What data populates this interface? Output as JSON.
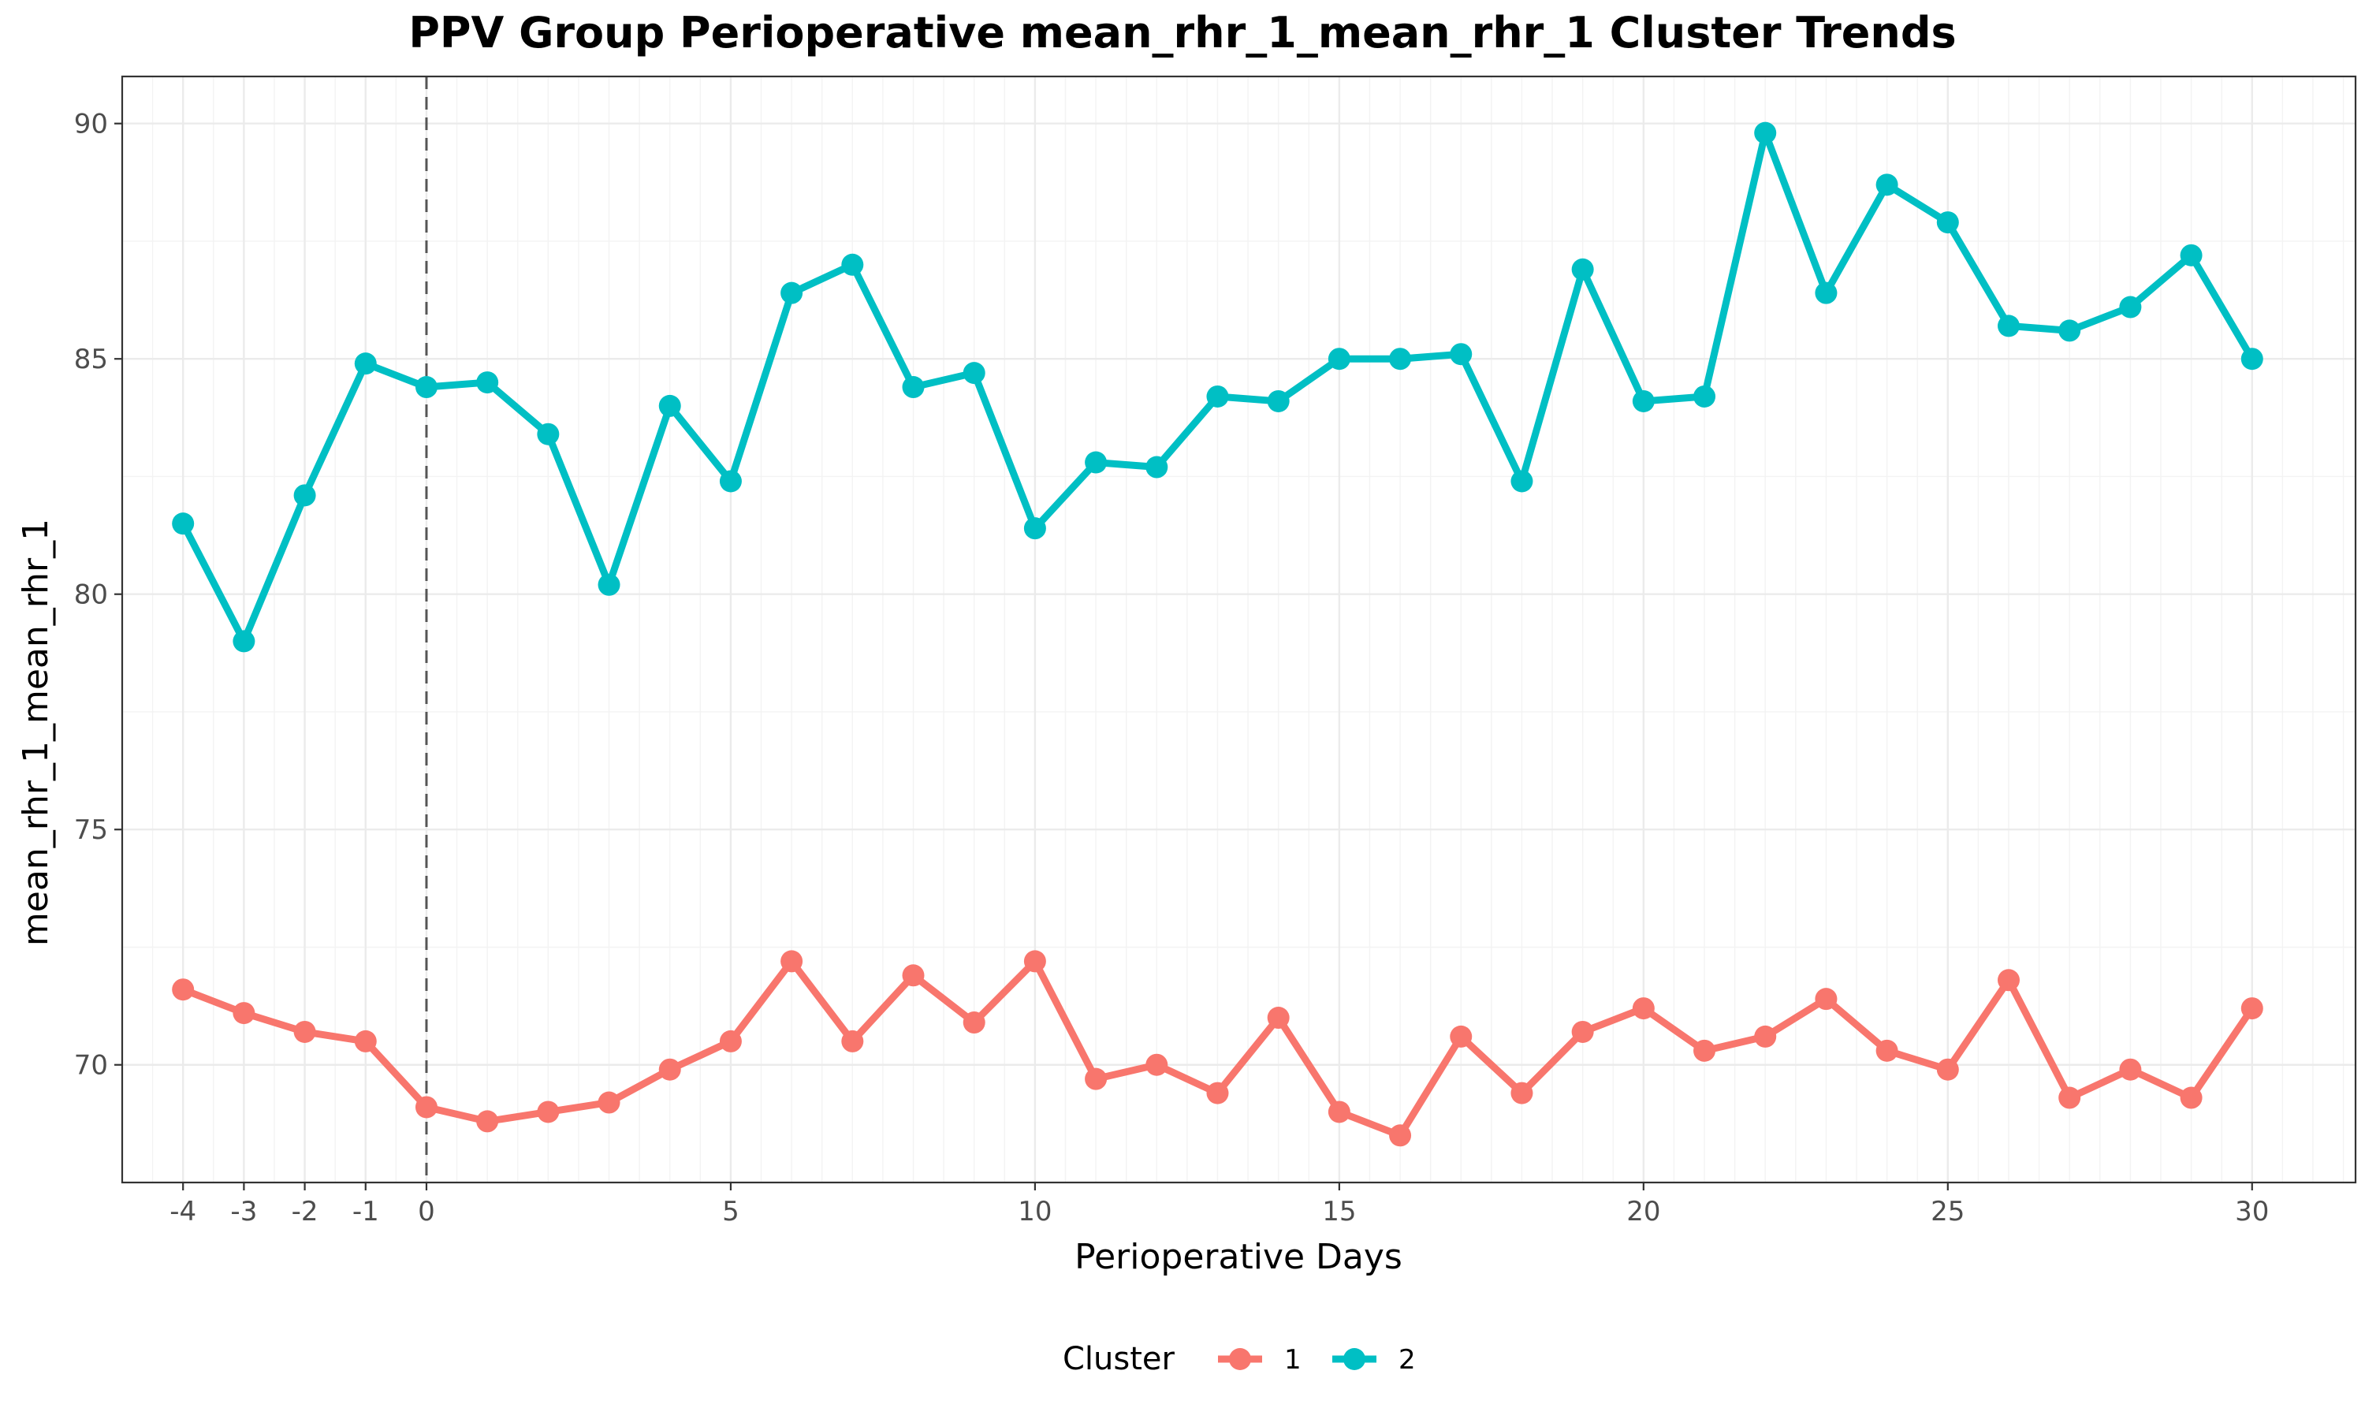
{
  "chart_data": {
    "type": "line",
    "title": "PPV Group Perioperative mean_rhr_1_mean_rhr_1 Cluster Trends",
    "xlabel": "Perioperative Days",
    "ylabel": "mean_rhr_1_mean_rhr_1",
    "x": [
      -4,
      -3,
      -2,
      -1,
      0,
      1,
      2,
      3,
      4,
      5,
      6,
      7,
      8,
      9,
      10,
      11,
      12,
      13,
      14,
      15,
      16,
      17,
      18,
      19,
      20,
      21,
      22,
      23,
      24,
      25,
      26,
      27,
      28,
      29,
      30
    ],
    "x_ticks": [
      -4,
      -3,
      -2,
      -1,
      0,
      5,
      10,
      15,
      20,
      25,
      30
    ],
    "x_tick_labels": [
      "-4",
      "-3",
      "-2",
      "-1",
      "0",
      "5",
      "10",
      "15",
      "20",
      "25",
      "30"
    ],
    "xlim": [
      -5,
      31.7
    ],
    "y_ticks": [
      70,
      75,
      80,
      85,
      90
    ],
    "y_tick_labels": [
      "70",
      "75",
      "80",
      "85",
      "90"
    ],
    "ylim": [
      67.5,
      91.0
    ],
    "grid": true,
    "reference_line_x": 0,
    "legend_title": "Cluster",
    "legend_position": "bottom",
    "series": [
      {
        "name": "1",
        "color": "#F8766D",
        "values": [
          71.6,
          71.1,
          70.7,
          70.5,
          69.1,
          68.8,
          69.0,
          69.2,
          69.9,
          70.5,
          72.2,
          70.5,
          71.9,
          70.9,
          72.2,
          69.7,
          70.0,
          69.4,
          71.0,
          69.0,
          68.5,
          70.6,
          69.4,
          70.7,
          71.2,
          70.3,
          70.6,
          71.4,
          70.3,
          69.9,
          71.8,
          69.3,
          69.9,
          69.3,
          71.2
        ]
      },
      {
        "name": "2",
        "color": "#00BFC4",
        "values": [
          81.5,
          79.0,
          82.1,
          84.9,
          84.4,
          84.5,
          83.4,
          80.2,
          84.0,
          82.4,
          86.4,
          87.0,
          84.4,
          84.7,
          81.4,
          82.8,
          82.7,
          84.2,
          84.1,
          85.0,
          85.0,
          85.1,
          82.4,
          86.9,
          84.1,
          84.2,
          89.8,
          86.4,
          88.7,
          87.9,
          85.7,
          85.6,
          86.1,
          87.2,
          85.0
        ]
      }
    ]
  }
}
